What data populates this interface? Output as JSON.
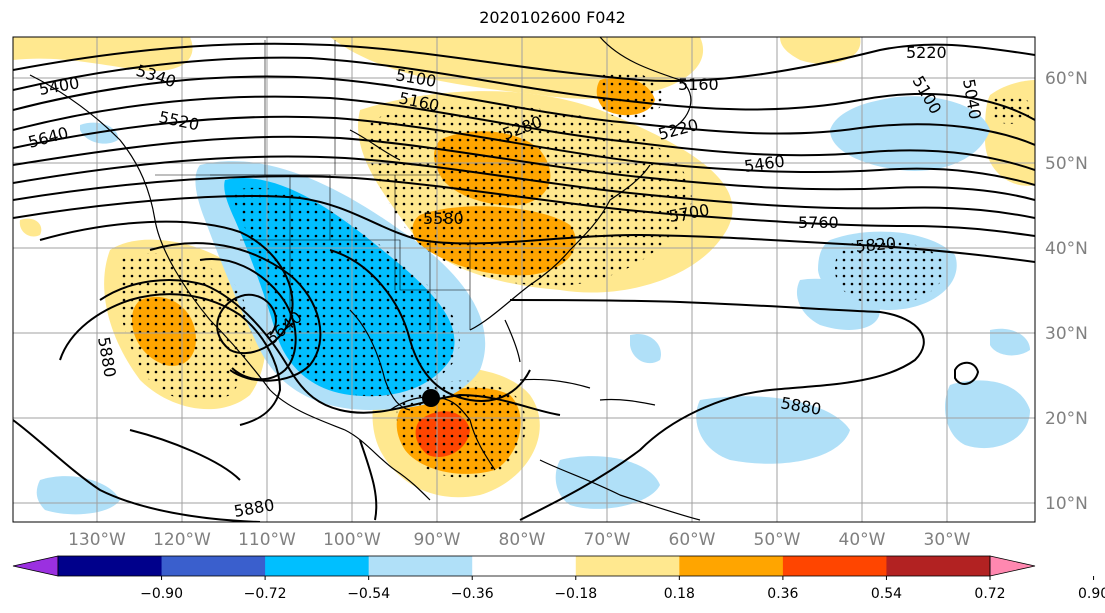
{
  "title": "2020102600 F042",
  "lon_labels": [
    "130°W",
    "120°W",
    "110°W",
    "100°W",
    "90°W",
    "80°W",
    "70°W",
    "60°W",
    "50°W",
    "40°W",
    "30°W"
  ],
  "lat_labels": [
    "60°N",
    "50°N",
    "40°N",
    "30°N",
    "20°N",
    "10°N"
  ],
  "colorbar": {
    "colors": [
      "#9b30e0",
      "#00008b",
      "#3a5fcd",
      "#00bfff",
      "#b0e0f8",
      "#ffffff",
      "#ffe88f",
      "#ffa500",
      "#ff4500",
      "#b22222",
      "#ff88b0"
    ],
    "tick_labels": [
      "−0.90",
      "−0.72",
      "−0.54",
      "−0.36",
      "−0.18",
      "0.18",
      "0.36",
      "0.54",
      "0.72",
      "0.90"
    ]
  },
  "contour_labels": [
    "5340",
    "5100",
    "5160",
    "5220",
    "5160",
    "5220",
    "5100",
    "5040",
    "5400",
    "5520",
    "5640",
    "5280",
    "5460",
    "5700",
    "5760",
    "5820",
    "5580",
    "5640",
    "5880",
    "5880",
    "5880"
  ],
  "storm_marker": "center"
}
